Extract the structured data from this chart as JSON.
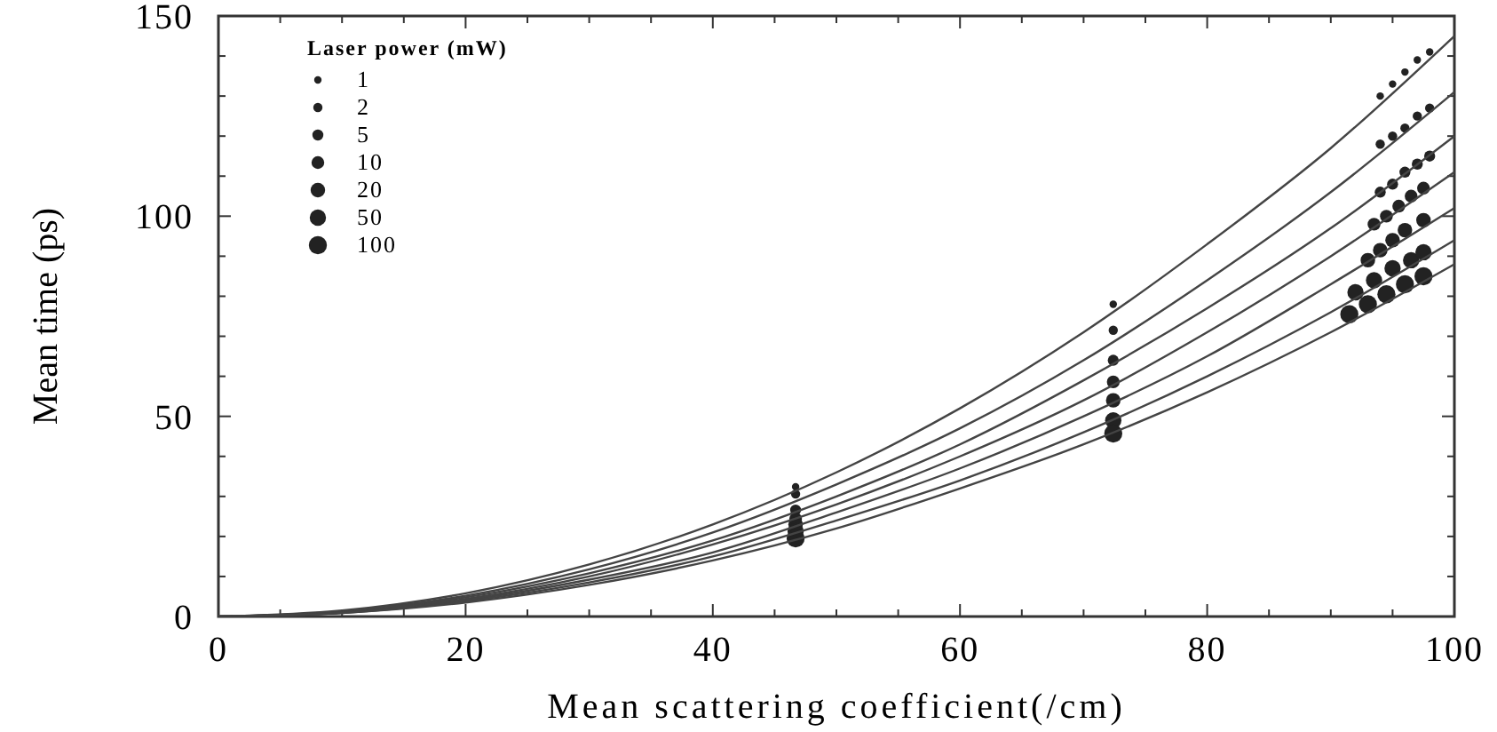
{
  "chart_data": {
    "type": "scatter",
    "xlabel": "Mean scattering coefficient(/cm)",
    "ylabel": "Mean time (ps)",
    "legend_title": "Laser power (mW)",
    "legend": "top left",
    "xlim": [
      0,
      100
    ],
    "ylim": [
      0,
      150
    ],
    "xticks": [
      0,
      {
        "value": 5,
        "label": null
      },
      {
        "value": 10,
        "label": null
      },
      {
        "value": 15,
        "label": null
      },
      20,
      {
        "value": 25,
        "label": null
      },
      {
        "value": 30,
        "label": null
      },
      {
        "value": 35,
        "label": null
      },
      40,
      {
        "value": 45,
        "label": null
      },
      {
        "value": 50,
        "label": null
      },
      {
        "value": 55,
        "label": null
      },
      60,
      {
        "value": 65,
        "label": null
      },
      {
        "value": 70,
        "label": null
      },
      {
        "value": 75,
        "label": null
      },
      80,
      {
        "value": 85,
        "label": null
      },
      {
        "value": 90,
        "label": null
      },
      {
        "value": 95,
        "label": null
      },
      100
    ],
    "yticks": [
      0,
      {
        "value": 10,
        "label": null
      },
      {
        "value": 20,
        "label": null
      },
      {
        "value": 30,
        "label": null
      },
      {
        "value": 40,
        "label": null
      },
      50,
      {
        "value": 60,
        "label": null
      },
      {
        "value": 70,
        "label": null
      },
      {
        "value": 80,
        "label": null
      },
      {
        "value": 90,
        "label": null
      },
      100,
      {
        "value": 110,
        "label": null
      },
      {
        "value": 120,
        "label": null
      },
      {
        "value": 130,
        "label": null
      },
      {
        "value": 140,
        "label": null
      },
      150
    ],
    "series": [
      {
        "name": "1",
        "marker": "circle",
        "color": "#222222",
        "x": [
          46.7,
          72.4,
          94,
          95,
          96,
          97,
          98
        ],
        "values": [
          32.4,
          78,
          130,
          133,
          136,
          139,
          141
        ]
      },
      {
        "name": "2",
        "marker": "circle",
        "color": "#222222",
        "x": [
          46.7,
          72.4,
          94,
          95,
          96,
          97,
          98
        ],
        "values": [
          30.6,
          71.5,
          118,
          120,
          122,
          125,
          127
        ]
      },
      {
        "name": "5",
        "marker": "circle",
        "color": "#222222",
        "x": [
          46.7,
          72.4,
          94,
          95,
          96,
          97,
          98
        ],
        "values": [
          26.6,
          64,
          106,
          108,
          111,
          113,
          115
        ]
      },
      {
        "name": "10",
        "marker": "circle",
        "color": "#222222",
        "x": [
          46.7,
          72.4,
          93.5,
          94.5,
          95.5,
          96.5,
          97.5
        ],
        "values": [
          24.4,
          58.6,
          98,
          100,
          102.5,
          105,
          107
        ]
      },
      {
        "name": "20",
        "marker": "circle",
        "color": "#222222",
        "x": [
          46.7,
          72.4,
          93,
          94,
          95,
          96,
          97.5
        ],
        "values": [
          23,
          54,
          89,
          91.5,
          94,
          96.5,
          99
        ]
      },
      {
        "name": "50",
        "marker": "circle",
        "color": "#222222",
        "x": [
          46.7,
          72.4,
          92,
          93.5,
          95,
          96.5,
          97.5
        ],
        "values": [
          21.3,
          49,
          81,
          84,
          87,
          89,
          91
        ]
      },
      {
        "name": "100",
        "marker": "circle",
        "color": "#222222",
        "x": [
          46.7,
          72.4,
          91.5,
          93,
          94.5,
          96,
          97.5
        ],
        "values": [
          19.5,
          45.7,
          75.5,
          78,
          80.5,
          83,
          85
        ]
      },
      {
        "type": "line",
        "marker": "none",
        "color": "#444444",
        "x": [
          0,
          10,
          20,
          30,
          40,
          50,
          60,
          70,
          80,
          90,
          100
        ],
        "values": [
          0,
          1.5,
          5.8,
          13,
          23,
          36,
          52,
          71,
          93,
          117,
          145
        ]
      },
      {
        "type": "line",
        "marker": "none",
        "color": "#444444",
        "x": [
          0,
          10,
          20,
          30,
          40,
          50,
          60,
          70,
          80,
          90,
          100
        ],
        "values": [
          0,
          1.3,
          5.2,
          11.8,
          21,
          33,
          47,
          64,
          84,
          106,
          131
        ]
      },
      {
        "type": "line",
        "marker": "none",
        "color": "#444444",
        "x": [
          0,
          10,
          20,
          30,
          40,
          50,
          60,
          70,
          80,
          90,
          100
        ],
        "values": [
          0,
          1.2,
          4.8,
          10.8,
          19,
          30,
          43,
          59,
          77,
          97,
          120
        ]
      },
      {
        "type": "line",
        "marker": "none",
        "color": "#444444",
        "x": [
          0,
          10,
          20,
          30,
          40,
          50,
          60,
          70,
          80,
          90,
          100
        ],
        "values": [
          0,
          1.1,
          4.4,
          10,
          18,
          28,
          40,
          54,
          71,
          90,
          111
        ]
      },
      {
        "type": "line",
        "marker": "none",
        "color": "#444444",
        "x": [
          0,
          10,
          20,
          30,
          40,
          50,
          60,
          70,
          80,
          90,
          100
        ],
        "values": [
          0,
          1,
          4.1,
          9.2,
          16,
          26,
          37,
          50,
          65,
          83,
          102
        ]
      },
      {
        "type": "line",
        "marker": "none",
        "color": "#444444",
        "x": [
          0,
          10,
          20,
          30,
          40,
          50,
          60,
          70,
          80,
          90,
          100
        ],
        "values": [
          0,
          0.9,
          3.8,
          8.5,
          15,
          24,
          34,
          46,
          60,
          76,
          94
        ]
      },
      {
        "type": "line",
        "marker": "none",
        "color": "#444444",
        "x": [
          0,
          10,
          20,
          30,
          40,
          50,
          60,
          70,
          80,
          90,
          100
        ],
        "values": [
          0,
          0.9,
          3.5,
          7.9,
          14,
          22,
          32,
          43,
          56,
          71,
          88
        ]
      }
    ]
  }
}
